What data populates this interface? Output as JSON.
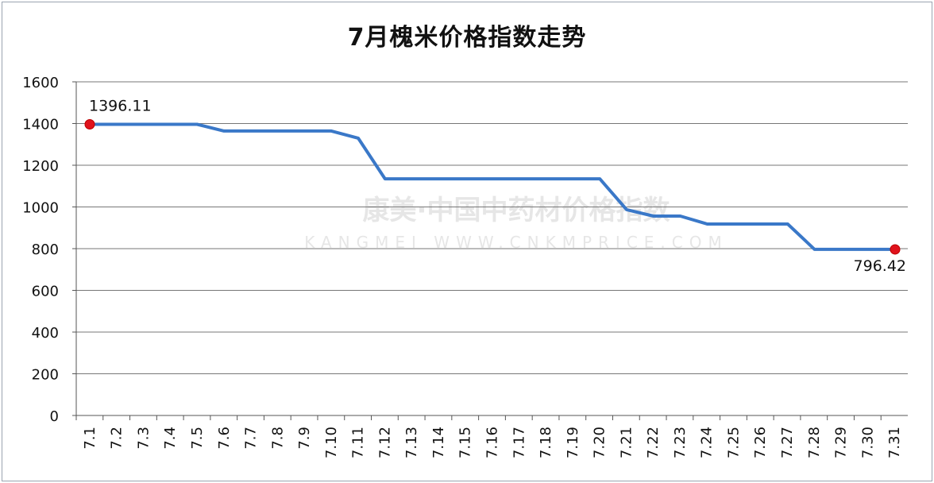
{
  "chart_data": {
    "type": "line",
    "title": "7月槐米价格指数走势",
    "xlabel": "",
    "ylabel": "",
    "categories": [
      "7.1",
      "7.2",
      "7.3",
      "7.4",
      "7.5",
      "7.6",
      "7.7",
      "7.8",
      "7.9",
      "7.10",
      "7.11",
      "7.12",
      "7.13",
      "7.14",
      "7.15",
      "7.16",
      "7.17",
      "7.18",
      "7.19",
      "7.20",
      "7.21",
      "7.22",
      "7.23",
      "7.24",
      "7.25",
      "7.26",
      "7.27",
      "7.28",
      "7.29",
      "7.30",
      "7.31"
    ],
    "series": [
      {
        "values": [
          1396.11,
          1396,
          1396,
          1396,
          1396,
          1364,
          1364,
          1364,
          1364,
          1364,
          1330,
          1135,
          1135,
          1135,
          1135,
          1135,
          1135,
          1135,
          1135,
          1135,
          987,
          956,
          956,
          918,
          918,
          918,
          918,
          796.42,
          796.42,
          796.42,
          796.42
        ],
        "color": "#3a78c8"
      }
    ],
    "ylim": [
      0,
      1600
    ],
    "yticks": [
      0,
      200,
      400,
      600,
      800,
      1000,
      1200,
      1400,
      1600
    ],
    "grid": true,
    "legend": "none",
    "annotations": [
      {
        "index": 0,
        "text": "1396.11",
        "marker_color": "#e0121c"
      },
      {
        "index": 30,
        "text": "796.42",
        "marker_color": "#e0121c"
      }
    ],
    "watermark": {
      "line1": "康美·中国中药材价格指数",
      "line2": "KANGMEI WWW.CNKMPRICE.COM"
    }
  }
}
